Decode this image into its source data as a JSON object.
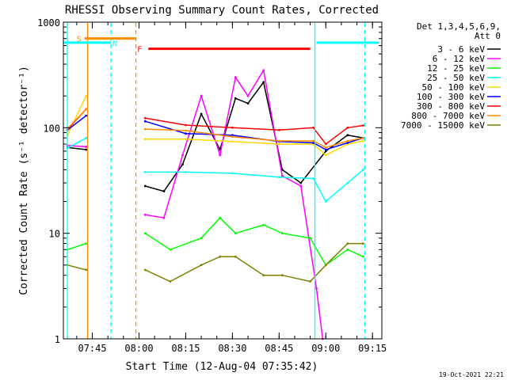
{
  "chart_data": {
    "type": "line",
    "title": "RHESSI Observing Summary Count Rates, Corrected",
    "xlabel": "Start Time (12-Aug-04 07:35:42)",
    "ylabel": "Corrected Count Rate (s⁻¹ detector⁻¹)",
    "y_scale": "log",
    "ylim": [
      1,
      1000
    ],
    "xlim": [
      "07:35:42",
      "09:18:00"
    ],
    "y_ticks": [
      "1",
      "10",
      "100",
      "1000"
    ],
    "x_ticks": [
      "07:45",
      "08:00",
      "08:15",
      "08:30",
      "08:45",
      "09:00",
      "09:15"
    ],
    "legend_header": [
      "Det 1,3,4,5,6,9,",
      "Att 0"
    ],
    "legend_position": "right",
    "timestamp": "19-Oct-2021 22:21",
    "series": [
      {
        "name": "3 - 6 keV",
        "color": "#000000",
        "x": [
          "07:37",
          "07:43",
          "08:02",
          "08:08",
          "08:14",
          "08:20",
          "08:26",
          "08:31",
          "08:35",
          "08:40",
          "08:46",
          "08:52",
          "09:00",
          "09:07",
          "09:12"
        ],
        "y": [
          65,
          62,
          28,
          25,
          45,
          135,
          62,
          190,
          170,
          270,
          40,
          30,
          60,
          85,
          80
        ]
      },
      {
        "name": "6 - 12 keV",
        "color": "#ff00ff",
        "x": [
          "07:37",
          "07:43",
          "08:02",
          "08:08",
          "08:14",
          "08:20",
          "08:26",
          "08:31",
          "08:35",
          "08:40",
          "08:46",
          "08:52",
          "08:57",
          "08:59"
        ],
        "y": [
          68,
          66,
          15,
          14,
          55,
          200,
          55,
          300,
          200,
          350,
          35,
          28,
          3,
          1
        ]
      },
      {
        "name": "12 - 25 keV",
        "color": "#00ff00",
        "x": [
          "07:37",
          "07:43",
          "08:02",
          "08:10",
          "08:20",
          "08:26",
          "08:31",
          "08:40",
          "08:46",
          "08:55",
          "09:00",
          "09:07",
          "09:12"
        ],
        "y": [
          7,
          8,
          10,
          7,
          9,
          14,
          10,
          12,
          10,
          9,
          5,
          7,
          6
        ]
      },
      {
        "name": "25 - 50 keV",
        "color": "#00ffff",
        "x": [
          "07:37",
          "07:43",
          "08:02",
          "08:15",
          "08:30",
          "08:45",
          "08:56",
          "09:00",
          "09:07",
          "09:12"
        ],
        "y": [
          64,
          80,
          38,
          38,
          37,
          34,
          33,
          20,
          30,
          40
        ]
      },
      {
        "name": "50 - 100 keV",
        "color": "#ffd700",
        "x": [
          "07:37",
          "07:43",
          "08:02",
          "08:15",
          "08:30",
          "08:45",
          "08:56",
          "09:00",
          "09:07",
          "09:12"
        ],
        "y": [
          85,
          200,
          78,
          78,
          74,
          70,
          70,
          55,
          70,
          75
        ]
      },
      {
        "name": "100 - 300 keV",
        "color": "#0000ff",
        "x": [
          "07:37",
          "07:43",
          "08:02",
          "08:15",
          "08:30",
          "08:45",
          "08:56",
          "09:00",
          "09:07",
          "09:12"
        ],
        "y": [
          95,
          130,
          115,
          88,
          85,
          74,
          72,
          62,
          72,
          80
        ]
      },
      {
        "name": "300 - 800 keV",
        "color": "#ff0000",
        "x": [
          "07:37",
          "07:43",
          "08:02",
          "08:15",
          "08:30",
          "08:45",
          "08:56",
          "09:00",
          "09:07",
          "09:12"
        ],
        "y": [
          96,
          150,
          123,
          106,
          100,
          95,
          100,
          70,
          100,
          105
        ]
      },
      {
        "name": "800 - 7000 keV",
        "color": "#ff8c00",
        "x": [
          "07:37",
          "07:43",
          "08:02",
          "08:15",
          "08:30",
          "08:45",
          "08:56",
          "09:00",
          "09:07",
          "09:12"
        ],
        "y": [
          98,
          150,
          97,
          94,
          82,
          75,
          75,
          65,
          75,
          80
        ]
      },
      {
        "name": "7000 - 15000 keV",
        "color": "#808000",
        "x": [
          "07:37",
          "07:43",
          "08:02",
          "08:10",
          "08:20",
          "08:26",
          "08:31",
          "08:40",
          "08:46",
          "08:55",
          "09:00",
          "09:07",
          "09:12"
        ],
        "y": [
          5,
          4.5,
          4.5,
          3.5,
          5,
          6,
          6,
          4,
          4,
          3.5,
          5,
          8,
          8
        ]
      }
    ],
    "flag_bars": [
      {
        "label": "S",
        "color": "#ff8c00",
        "start": "07:42:30",
        "end": "07:59:00",
        "y": 700
      },
      {
        "label": "N",
        "color": "#00ffff",
        "start": "07:35:42",
        "end": "07:51:00",
        "y": 640
      },
      {
        "label": "F",
        "color": "#ff0000",
        "start": "08:03:00",
        "end": "08:55:00",
        "y": 560
      },
      {
        "label": "",
        "color": "#00ffff",
        "start": "08:57:00",
        "end": "09:17:00",
        "y": 640
      }
    ],
    "vertical_markers": [
      {
        "time": "07:37:00",
        "color": "#00ffff",
        "style": "solid"
      },
      {
        "time": "07:43:30",
        "color": "#ff8c00",
        "style": "solid"
      },
      {
        "time": "07:51:00",
        "color": "#00ffff",
        "style": "dashed"
      },
      {
        "time": "07:59:00",
        "color": "#ff8c00",
        "style": "dashed"
      },
      {
        "time": "08:56:30",
        "color": "#00ffff",
        "style": "solid"
      },
      {
        "time": "09:12:30",
        "color": "#00ffff",
        "style": "dashed"
      }
    ]
  }
}
